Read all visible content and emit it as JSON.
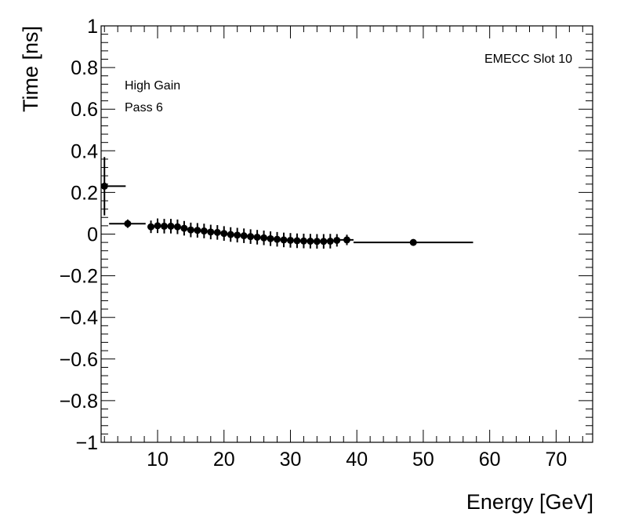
{
  "chart_data": {
    "type": "scatter",
    "title": "",
    "xlabel": "Energy [GeV]",
    "ylabel": "Time [ns]",
    "xlim": [
      1.5,
      75.5
    ],
    "ylim": [
      -1,
      1
    ],
    "x_ticks": [
      10,
      20,
      30,
      40,
      50,
      60,
      70
    ],
    "x_tick_labels": [
      "10",
      "20",
      "30",
      "40",
      "50",
      "60",
      "70"
    ],
    "y_ticks": [
      -1,
      -0.8,
      -0.6,
      -0.4,
      -0.2,
      0,
      0.2,
      0.4,
      0.6,
      0.8,
      1
    ],
    "y_tick_labels": [
      "−1",
      "−0.8",
      "−0.6",
      "−0.4",
      "−0.2",
      "0",
      "0.2",
      "0.4",
      "0.6",
      "0.8",
      "1"
    ],
    "annotations": {
      "gain": "High Gain",
      "pass": "Pass 6",
      "slot": "EMECC Slot 10"
    },
    "grid": false,
    "series": [
      {
        "points": [
          {
            "x": 2.0,
            "y": 0.23,
            "xerr": [
              0.5,
              3.2
            ],
            "yerr": 0.14
          },
          {
            "x": 5.5,
            "y": 0.05,
            "xerr": [
              2.8,
              2.7
            ],
            "yerr": 0.02
          },
          {
            "x": 9.0,
            "y": 0.035,
            "xerr": [
              0.5,
              0.5
            ],
            "yerr": 0.03
          },
          {
            "x": 10.0,
            "y": 0.04,
            "xerr": [
              0.5,
              0.5
            ],
            "yerr": 0.035
          },
          {
            "x": 11.0,
            "y": 0.038,
            "xerr": [
              0.5,
              0.5
            ],
            "yerr": 0.035
          },
          {
            "x": 12.0,
            "y": 0.038,
            "xerr": [
              0.5,
              0.5
            ],
            "yerr": 0.035
          },
          {
            "x": 13.0,
            "y": 0.035,
            "xerr": [
              0.5,
              0.5
            ],
            "yerr": 0.035
          },
          {
            "x": 14.0,
            "y": 0.028,
            "xerr": [
              0.5,
              0.5
            ],
            "yerr": 0.035
          },
          {
            "x": 15.0,
            "y": 0.02,
            "xerr": [
              0.5,
              0.5
            ],
            "yerr": 0.035
          },
          {
            "x": 16.0,
            "y": 0.018,
            "xerr": [
              0.5,
              0.5
            ],
            "yerr": 0.035
          },
          {
            "x": 17.0,
            "y": 0.015,
            "xerr": [
              0.5,
              0.5
            ],
            "yerr": 0.035
          },
          {
            "x": 18.0,
            "y": 0.01,
            "xerr": [
              0.5,
              0.5
            ],
            "yerr": 0.035
          },
          {
            "x": 19.0,
            "y": 0.008,
            "xerr": [
              0.5,
              0.5
            ],
            "yerr": 0.035
          },
          {
            "x": 20.0,
            "y": 0.003,
            "xerr": [
              0.5,
              0.5
            ],
            "yerr": 0.035
          },
          {
            "x": 21.0,
            "y": -0.002,
            "xerr": [
              0.5,
              0.5
            ],
            "yerr": 0.035
          },
          {
            "x": 22.0,
            "y": -0.005,
            "xerr": [
              0.5,
              0.5
            ],
            "yerr": 0.035
          },
          {
            "x": 23.0,
            "y": -0.008,
            "xerr": [
              0.5,
              0.5
            ],
            "yerr": 0.035
          },
          {
            "x": 24.0,
            "y": -0.012,
            "xerr": [
              0.5,
              0.5
            ],
            "yerr": 0.035
          },
          {
            "x": 25.0,
            "y": -0.015,
            "xerr": [
              0.5,
              0.5
            ],
            "yerr": 0.035
          },
          {
            "x": 26.0,
            "y": -0.018,
            "xerr": [
              0.5,
              0.5
            ],
            "yerr": 0.035
          },
          {
            "x": 27.0,
            "y": -0.022,
            "xerr": [
              0.5,
              0.5
            ],
            "yerr": 0.035
          },
          {
            "x": 28.0,
            "y": -0.025,
            "xerr": [
              0.5,
              0.5
            ],
            "yerr": 0.035
          },
          {
            "x": 29.0,
            "y": -0.028,
            "xerr": [
              0.5,
              0.5
            ],
            "yerr": 0.035
          },
          {
            "x": 30.0,
            "y": -0.03,
            "xerr": [
              0.5,
              0.5
            ],
            "yerr": 0.035
          },
          {
            "x": 31.0,
            "y": -0.032,
            "xerr": [
              0.5,
              0.5
            ],
            "yerr": 0.035
          },
          {
            "x": 32.0,
            "y": -0.033,
            "xerr": [
              0.5,
              0.5
            ],
            "yerr": 0.035
          },
          {
            "x": 33.0,
            "y": -0.034,
            "xerr": [
              0.5,
              0.5
            ],
            "yerr": 0.035
          },
          {
            "x": 34.0,
            "y": -0.035,
            "xerr": [
              0.5,
              0.5
            ],
            "yerr": 0.035
          },
          {
            "x": 35.0,
            "y": -0.035,
            "xerr": [
              0.5,
              0.5
            ],
            "yerr": 0.035
          },
          {
            "x": 36.0,
            "y": -0.034,
            "xerr": [
              0.5,
              0.5
            ],
            "yerr": 0.035
          },
          {
            "x": 37.0,
            "y": -0.03,
            "xerr": [
              0.5,
              0.5
            ],
            "yerr": 0.03
          },
          {
            "x": 38.5,
            "y": -0.028,
            "xerr": [
              1.0,
              1.0
            ],
            "yerr": 0.025
          },
          {
            "x": 48.5,
            "y": -0.04,
            "xerr": [
              9.0,
              9.0
            ],
            "yerr": 0.01
          }
        ]
      }
    ]
  }
}
